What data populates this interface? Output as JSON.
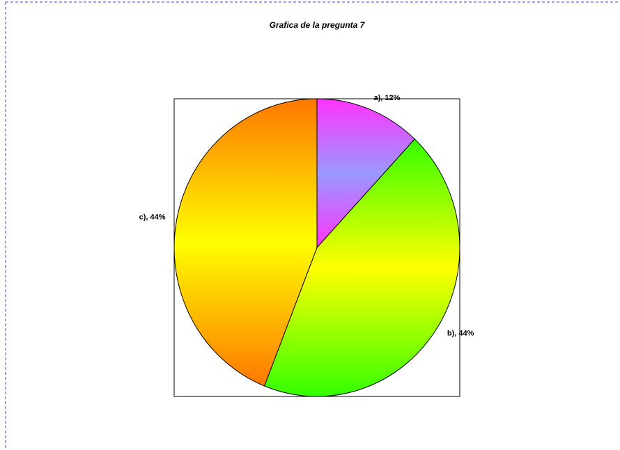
{
  "chart_data": {
    "type": "pie",
    "title": "Grafica de la pregunta  7",
    "values": [
      12,
      44,
      44
    ],
    "value_labels": [
      "a), 12%",
      "b), 44%",
      "c), 44%"
    ],
    "colors": [
      [
        "#ff33ff",
        "#9999ff"
      ],
      [
        "#33ff00",
        "#ffff00"
      ],
      [
        "#ff7700",
        "#ffff00"
      ]
    ]
  }
}
